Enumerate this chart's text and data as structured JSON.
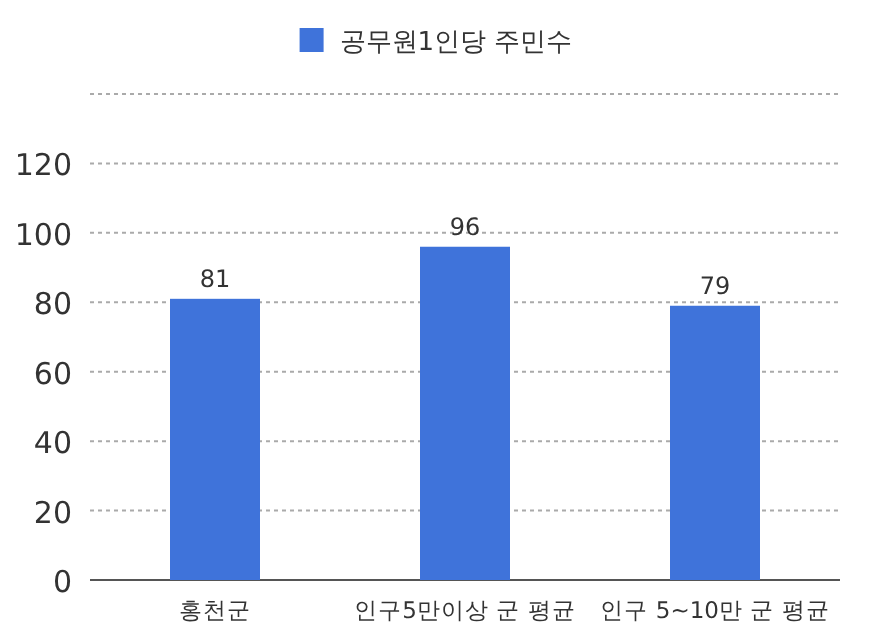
{
  "chart_data": {
    "type": "bar",
    "categories": [
      "홍천군",
      "인구5만이상 군 평균",
      "인구 5~10만 군 평균"
    ],
    "series": [
      {
        "name": "공무원1인당 주민수",
        "color": "#3f73da",
        "values": [
          81,
          96,
          79
        ]
      }
    ],
    "ylim": [
      0,
      140
    ],
    "yticks": [
      0,
      20,
      40,
      60,
      80,
      100,
      120,
      {
        "value": 140,
        "label": null
      }
    ],
    "grid": "y",
    "legend": "top",
    "data_labels": true
  }
}
